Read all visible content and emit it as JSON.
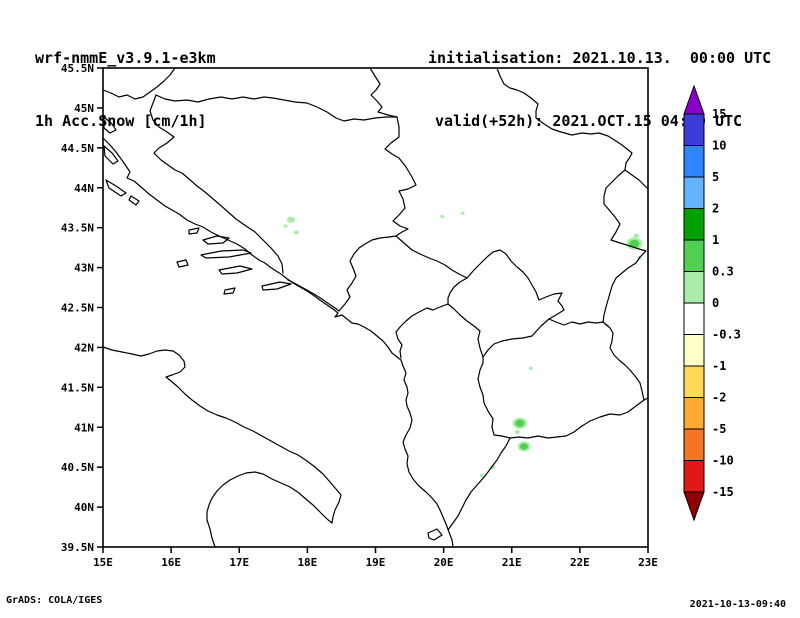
{
  "header": {
    "model": "wrf-nmmE_v3.9.1-e3km",
    "product": "1h Acc.Snow [cm/1h]",
    "init": "initialisation: 2021.10.13.  00:00 UTC",
    "valid": "valid(+52h): 2021.OCT.15 04:00 UTC"
  },
  "footer": {
    "left": "GrADS: COLA/IGES",
    "right": "2021-10-13-09:40"
  },
  "chart_data": {
    "type": "heatmap",
    "title": "1h Acc.Snow [cm/1h]",
    "subtitle": "wrf-nmmE_v3.9.1-e3km",
    "grid": false,
    "colorbar_position": "right",
    "x_axis": {
      "range": [
        15,
        23
      ],
      "unit": "degrees East",
      "ticks": [
        "15E",
        "16E",
        "17E",
        "18E",
        "19E",
        "20E",
        "21E",
        "22E",
        "23E"
      ],
      "values": [
        15,
        16,
        17,
        18,
        19,
        20,
        21,
        22,
        23
      ]
    },
    "y_axis": {
      "range": [
        39.5,
        45.5
      ],
      "unit": "degrees North",
      "ticks": [
        "45.5N",
        "45N",
        "44.5N",
        "44N",
        "43.5N",
        "43N",
        "42.5N",
        "42N",
        "41.5N",
        "41N",
        "40.5N",
        "40N",
        "39.5N"
      ],
      "values": [
        45.5,
        45,
        44.5,
        44,
        43.5,
        43,
        42.5,
        42,
        41.5,
        41,
        40.5,
        40,
        39.5
      ]
    },
    "colorbar": {
      "levels": [
        "15",
        "10",
        "5",
        "2",
        "1",
        "0.3",
        "0",
        "-0.3",
        "-1",
        "-2",
        "-5",
        "-10",
        "-15"
      ],
      "colors": [
        "#8a00c8",
        "#3c3cd8",
        "#2e86ff",
        "#63b4ff",
        "#00a000",
        "#50d050",
        "#a8eea8",
        "#ffffff",
        "#ffffc8",
        "#ffd855",
        "#ffaa33",
        "#f57622",
        "#e01818",
        "#900000"
      ]
    },
    "snow_patches": [
      {
        "lon": 17.76,
        "lat": 43.6,
        "r": 4,
        "color_index": 6
      },
      {
        "lon": 17.84,
        "lat": 43.44,
        "r": 2.5,
        "color_index": 6
      },
      {
        "lon": 17.68,
        "lat": 43.52,
        "r": 2,
        "color_index": 6
      },
      {
        "lon": 19.98,
        "lat": 43.64,
        "r": 2,
        "color_index": 6
      },
      {
        "lon": 20.28,
        "lat": 43.68,
        "r": 2,
        "color_index": 6
      },
      {
        "lon": 22.8,
        "lat": 43.3,
        "r": 5,
        "color_index": 5
      },
      {
        "lon": 22.83,
        "lat": 43.4,
        "r": 2.5,
        "color_index": 6
      },
      {
        "lon": 22.88,
        "lat": 43.12,
        "r": 2.5,
        "color_index": 6
      },
      {
        "lon": 22.4,
        "lat": 42.28,
        "r": 2,
        "color_index": 6
      },
      {
        "lon": 21.28,
        "lat": 41.74,
        "r": 2,
        "color_index": 6
      },
      {
        "lon": 21.12,
        "lat": 41.05,
        "r": 4.5,
        "color_index": 5
      },
      {
        "lon": 21.08,
        "lat": 40.94,
        "r": 2.5,
        "color_index": 6
      },
      {
        "lon": 21.18,
        "lat": 40.76,
        "r": 4,
        "color_index": 5
      },
      {
        "lon": 20.72,
        "lat": 40.5,
        "r": 2.5,
        "color_index": 6
      },
      {
        "lon": 20.56,
        "lat": 40.4,
        "r": 2,
        "color_index": 6
      }
    ]
  }
}
